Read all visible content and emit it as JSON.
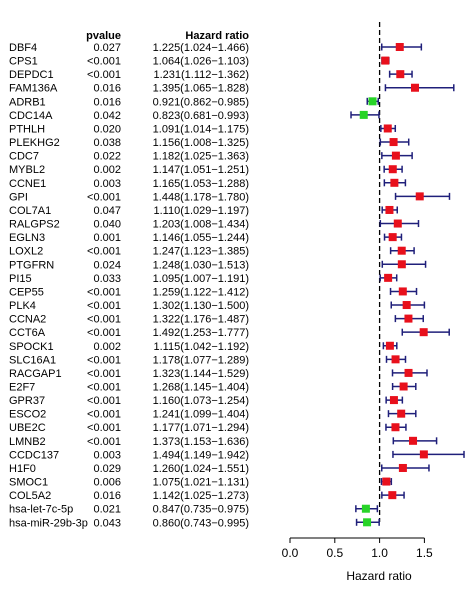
{
  "chart_data": {
    "type": "forest",
    "headers": {
      "pvalue": "pvalue",
      "hazard_ratio": "Hazard ratio"
    },
    "xlabel": "Hazard ratio",
    "xlim": [
      0.0,
      1.9
    ],
    "xticks": [
      0.0,
      0.5,
      1.0,
      1.5
    ],
    "xtick_labels": [
      "0.0",
      "0.5",
      "1.0",
      "1.5"
    ],
    "reference_line": 1.0,
    "colors": {
      "risk": "#e8101c",
      "protective": "#28d428",
      "line": "#1f1f7a"
    },
    "rows": [
      {
        "name": "DBF4",
        "pvalue": "0.027",
        "hr_text": "1.225(1.024−1.466)",
        "hr": 1.225,
        "lo": 1.024,
        "hi": 1.466
      },
      {
        "name": "CPS1",
        "pvalue": "<0.001",
        "hr_text": "1.064(1.026−1.103)",
        "hr": 1.064,
        "lo": 1.026,
        "hi": 1.103
      },
      {
        "name": "DEPDC1",
        "pvalue": "<0.001",
        "hr_text": "1.231(1.112−1.362)",
        "hr": 1.231,
        "lo": 1.112,
        "hi": 1.362
      },
      {
        "name": "FAM136A",
        "pvalue": "0.016",
        "hr_text": "1.395(1.065−1.828)",
        "hr": 1.395,
        "lo": 1.065,
        "hi": 1.828
      },
      {
        "name": "ADRB1",
        "pvalue": "0.016",
        "hr_text": "0.921(0.862−0.985)",
        "hr": 0.921,
        "lo": 0.862,
        "hi": 0.985
      },
      {
        "name": "CDC14A",
        "pvalue": "0.042",
        "hr_text": "0.823(0.681−0.993)",
        "hr": 0.823,
        "lo": 0.681,
        "hi": 0.993
      },
      {
        "name": "PTHLH",
        "pvalue": "0.020",
        "hr_text": "1.091(1.014−1.175)",
        "hr": 1.091,
        "lo": 1.014,
        "hi": 1.175
      },
      {
        "name": "PLEKHG2",
        "pvalue": "0.038",
        "hr_text": "1.156(1.008−1.325)",
        "hr": 1.156,
        "lo": 1.008,
        "hi": 1.325
      },
      {
        "name": "CDC7",
        "pvalue": "0.022",
        "hr_text": "1.182(1.025−1.363)",
        "hr": 1.182,
        "lo": 1.025,
        "hi": 1.363
      },
      {
        "name": "MYBL2",
        "pvalue": "0.002",
        "hr_text": "1.147(1.051−1.251)",
        "hr": 1.147,
        "lo": 1.051,
        "hi": 1.251
      },
      {
        "name": "CCNE1",
        "pvalue": "0.003",
        "hr_text": "1.165(1.053−1.288)",
        "hr": 1.165,
        "lo": 1.053,
        "hi": 1.288
      },
      {
        "name": "GPI",
        "pvalue": "<0.001",
        "hr_text": "1.448(1.178−1.780)",
        "hr": 1.448,
        "lo": 1.178,
        "hi": 1.78
      },
      {
        "name": "COL7A1",
        "pvalue": "0.047",
        "hr_text": "1.110(1.029−1.197)",
        "hr": 1.11,
        "lo": 1.029,
        "hi": 1.197
      },
      {
        "name": "RALGPS2",
        "pvalue": "0.040",
        "hr_text": "1.203(1.008−1.434)",
        "hr": 1.203,
        "lo": 1.008,
        "hi": 1.434
      },
      {
        "name": "EGLN3",
        "pvalue": "0.001",
        "hr_text": "1.146(1.055−1.244)",
        "hr": 1.146,
        "lo": 1.055,
        "hi": 1.244
      },
      {
        "name": "LOXL2",
        "pvalue": "<0.001",
        "hr_text": "1.247(1.123−1.385)",
        "hr": 1.247,
        "lo": 1.123,
        "hi": 1.385
      },
      {
        "name": "PTGFRN",
        "pvalue": "0.024",
        "hr_text": "1.248(1.030−1.513)",
        "hr": 1.248,
        "lo": 1.03,
        "hi": 1.513
      },
      {
        "name": "PI15",
        "pvalue": "0.033",
        "hr_text": "1.095(1.007−1.191)",
        "hr": 1.095,
        "lo": 1.007,
        "hi": 1.191
      },
      {
        "name": "CEP55",
        "pvalue": "<0.001",
        "hr_text": "1.259(1.122−1.412)",
        "hr": 1.259,
        "lo": 1.122,
        "hi": 1.412
      },
      {
        "name": "PLK4",
        "pvalue": "<0.001",
        "hr_text": "1.302(1.130−1.500)",
        "hr": 1.302,
        "lo": 1.13,
        "hi": 1.5
      },
      {
        "name": "CCNA2",
        "pvalue": "<0.001",
        "hr_text": "1.322(1.176−1.487)",
        "hr": 1.322,
        "lo": 1.176,
        "hi": 1.487
      },
      {
        "name": "CCT6A",
        "pvalue": "<0.001",
        "hr_text": "1.492(1.253−1.777)",
        "hr": 1.492,
        "lo": 1.253,
        "hi": 1.777
      },
      {
        "name": "SPOCK1",
        "pvalue": "0.002",
        "hr_text": "1.115(1.042−1.192)",
        "hr": 1.115,
        "lo": 1.042,
        "hi": 1.192
      },
      {
        "name": "SLC16A1",
        "pvalue": "<0.001",
        "hr_text": "1.178(1.077−1.289)",
        "hr": 1.178,
        "lo": 1.077,
        "hi": 1.289
      },
      {
        "name": "RACGAP1",
        "pvalue": "<0.001",
        "hr_text": "1.323(1.144−1.529)",
        "hr": 1.323,
        "lo": 1.144,
        "hi": 1.529
      },
      {
        "name": "E2F7",
        "pvalue": "<0.001",
        "hr_text": "1.268(1.145−1.404)",
        "hr": 1.268,
        "lo": 1.145,
        "hi": 1.404
      },
      {
        "name": "GPR37",
        "pvalue": "<0.001",
        "hr_text": "1.160(1.073−1.254)",
        "hr": 1.16,
        "lo": 1.073,
        "hi": 1.254
      },
      {
        "name": "ESCO2",
        "pvalue": "<0.001",
        "hr_text": "1.241(1.099−1.404)",
        "hr": 1.241,
        "lo": 1.099,
        "hi": 1.404
      },
      {
        "name": "UBE2C",
        "pvalue": "<0.001",
        "hr_text": "1.177(1.071−1.294)",
        "hr": 1.177,
        "lo": 1.071,
        "hi": 1.294
      },
      {
        "name": "LMNB2",
        "pvalue": "<0.001",
        "hr_text": "1.373(1.153−1.636)",
        "hr": 1.373,
        "lo": 1.153,
        "hi": 1.636
      },
      {
        "name": "CCDC137",
        "pvalue": "0.003",
        "hr_text": "1.494(1.149−1.942)",
        "hr": 1.494,
        "lo": 1.149,
        "hi": 1.942
      },
      {
        "name": "H1F0",
        "pvalue": "0.029",
        "hr_text": "1.260(1.024−1.551)",
        "hr": 1.26,
        "lo": 1.024,
        "hi": 1.551
      },
      {
        "name": "SMOC1",
        "pvalue": "0.006",
        "hr_text": "1.075(1.021−1.131)",
        "hr": 1.075,
        "lo": 1.021,
        "hi": 1.131
      },
      {
        "name": "COL5A2",
        "pvalue": "0.016",
        "hr_text": "1.142(1.025−1.273)",
        "hr": 1.142,
        "lo": 1.025,
        "hi": 1.273
      },
      {
        "name": "hsa-let-7c-5p",
        "pvalue": "0.021",
        "hr_text": "0.847(0.735−0.975)",
        "hr": 0.847,
        "lo": 0.735,
        "hi": 0.975
      },
      {
        "name": "hsa-miR-29b-3p",
        "pvalue": "0.043",
        "hr_text": "0.860(0.743−0.995)",
        "hr": 0.86,
        "lo": 0.743,
        "hi": 0.995
      }
    ]
  }
}
